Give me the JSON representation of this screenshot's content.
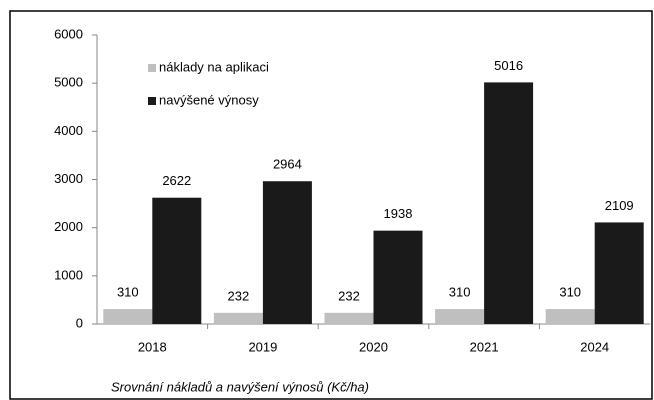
{
  "chart_data": {
    "type": "bar",
    "title": "Srovnání nákladů a navýšení výnosů (Kč/ha)",
    "categories": [
      "2018",
      "2019",
      "2020",
      "2021",
      "2024"
    ],
    "series": [
      {
        "name": "náklady na aplikaci",
        "color": "#bfbfbf",
        "values": [
          310,
          232,
          232,
          310,
          310
        ]
      },
      {
        "name": "navýšené výnosy",
        "color": "#1a1a1a",
        "values": [
          2622,
          2964,
          1938,
          5016,
          2109
        ]
      }
    ],
    "ylim": [
      0,
      6000
    ],
    "yticks": [
      0,
      1000,
      2000,
      3000,
      4000,
      5000,
      6000
    ],
    "legend": "upper left",
    "grid": false
  }
}
